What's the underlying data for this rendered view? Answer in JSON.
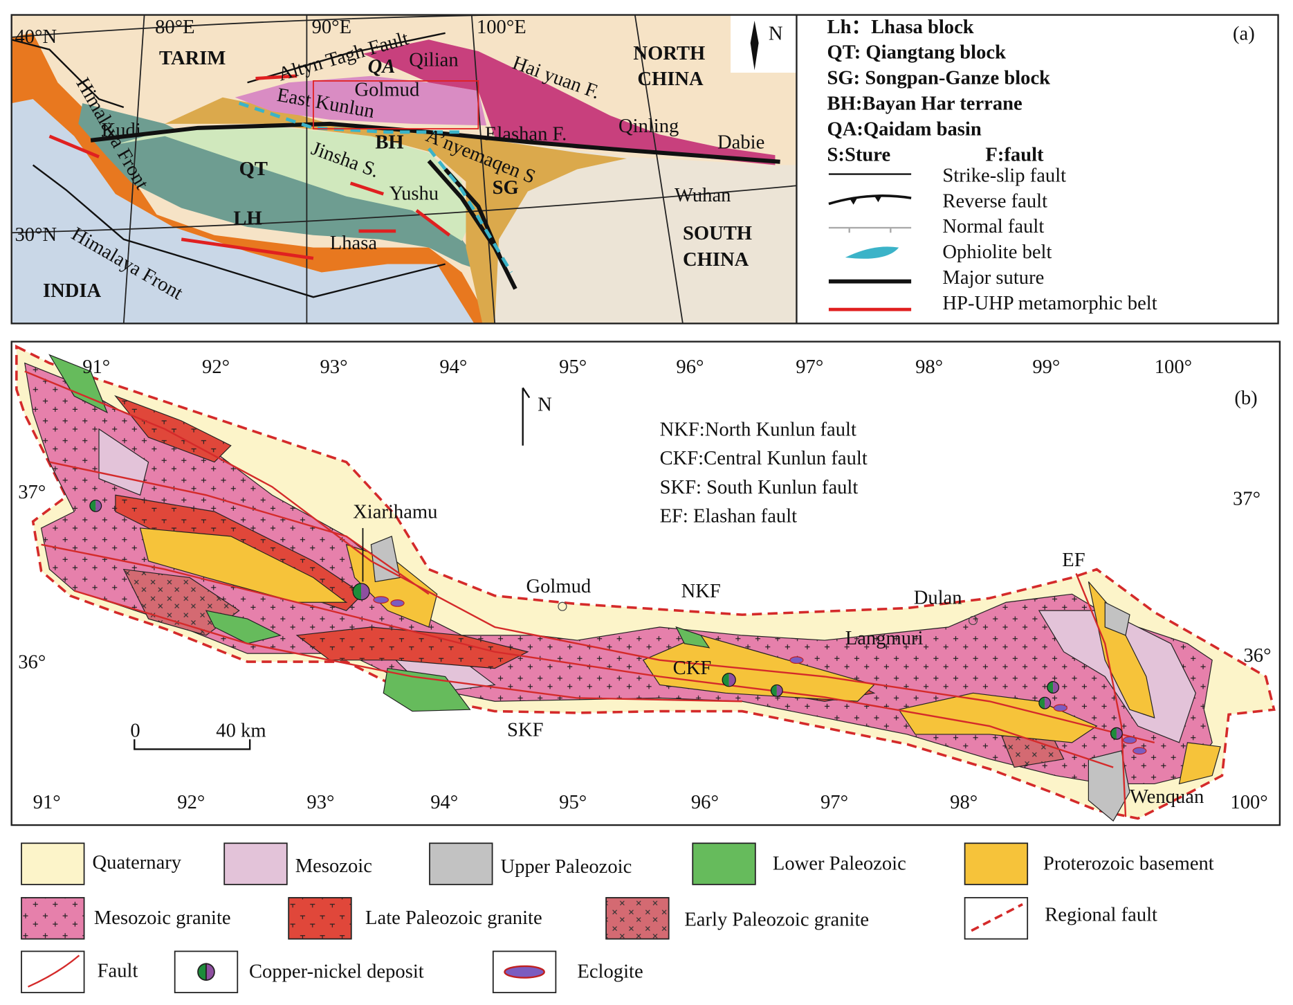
{
  "panel_a": {
    "label": "(a)",
    "north": "N",
    "labels": [
      "40°N",
      "80°E",
      "90°E",
      "100°E",
      "TARIM",
      "Altyn Tagh Fault",
      "QA",
      "Qilian",
      "Hai yuan F.",
      "NORTH",
      "CHINA",
      "Golmud",
      "East Kunlun",
      "Kudi",
      "Elashan F.",
      "Qinling",
      "Dabie",
      "BH",
      "QT",
      "Jinsha S.",
      "A’nyemaqen S",
      "Yushu",
      "SG",
      "Wuhan",
      "LH",
      "30°N",
      "Himalaya Front",
      "Himalaya Front",
      "Lhasa",
      "INDIA",
      "SOUTH",
      "CHINA"
    ],
    "legend_blocks": [
      "Lh：Lhasa  block",
      "QT: Qiangtang block",
      "SG: Songpan-Ganze block",
      "BH:Bayan Har terrane",
      "QA:Qaidam basin",
      "S:Sture",
      "F:fault"
    ],
    "legend_lines": [
      "Strike-slip fault",
      "Reverse fault",
      "Normal fault",
      "Ophiolite belt",
      "Major  suture",
      "HP-UHP metamorphic belt"
    ]
  },
  "panel_b": {
    "label": "(b)",
    "north": "N",
    "lon_top": [
      "91°",
      "92°",
      "93°",
      "94°",
      "95°",
      "96°",
      "97°",
      "98°",
      "99°",
      "100°"
    ],
    "lon_bottom": [
      "91°",
      "92°",
      "93°",
      "94°",
      "95°",
      "96°",
      "97°",
      "98°",
      "100°"
    ],
    "lat_left": [
      "37°",
      "36°"
    ],
    "lat_right": [
      "37°",
      "36°"
    ],
    "abbreviations": [
      "NKF:North Kunlun fault",
      "CKF:Central Kunlun fault",
      "SKF: South Kunlun fault",
      "EF: Elashan fault"
    ],
    "places": [
      "Xiarihamu",
      "Golmud",
      "NKF",
      "Dulan",
      "EF",
      "Langmuri",
      "CKF",
      "SKF",
      "Wenquan"
    ],
    "scale": [
      "0",
      "40 km"
    ]
  },
  "legend": [
    "Quaternary",
    "Mesozoic",
    "Upper Paleozoic",
    "Lower Paleozoic",
    "Proterozoic basement",
    "Mesozoic granite",
    "Late Paleozoic granite",
    "Early Paleozoic granite",
    "Regional fault",
    "Fault",
    "Copper-nickel deposit",
    "Eclogite"
  ]
}
